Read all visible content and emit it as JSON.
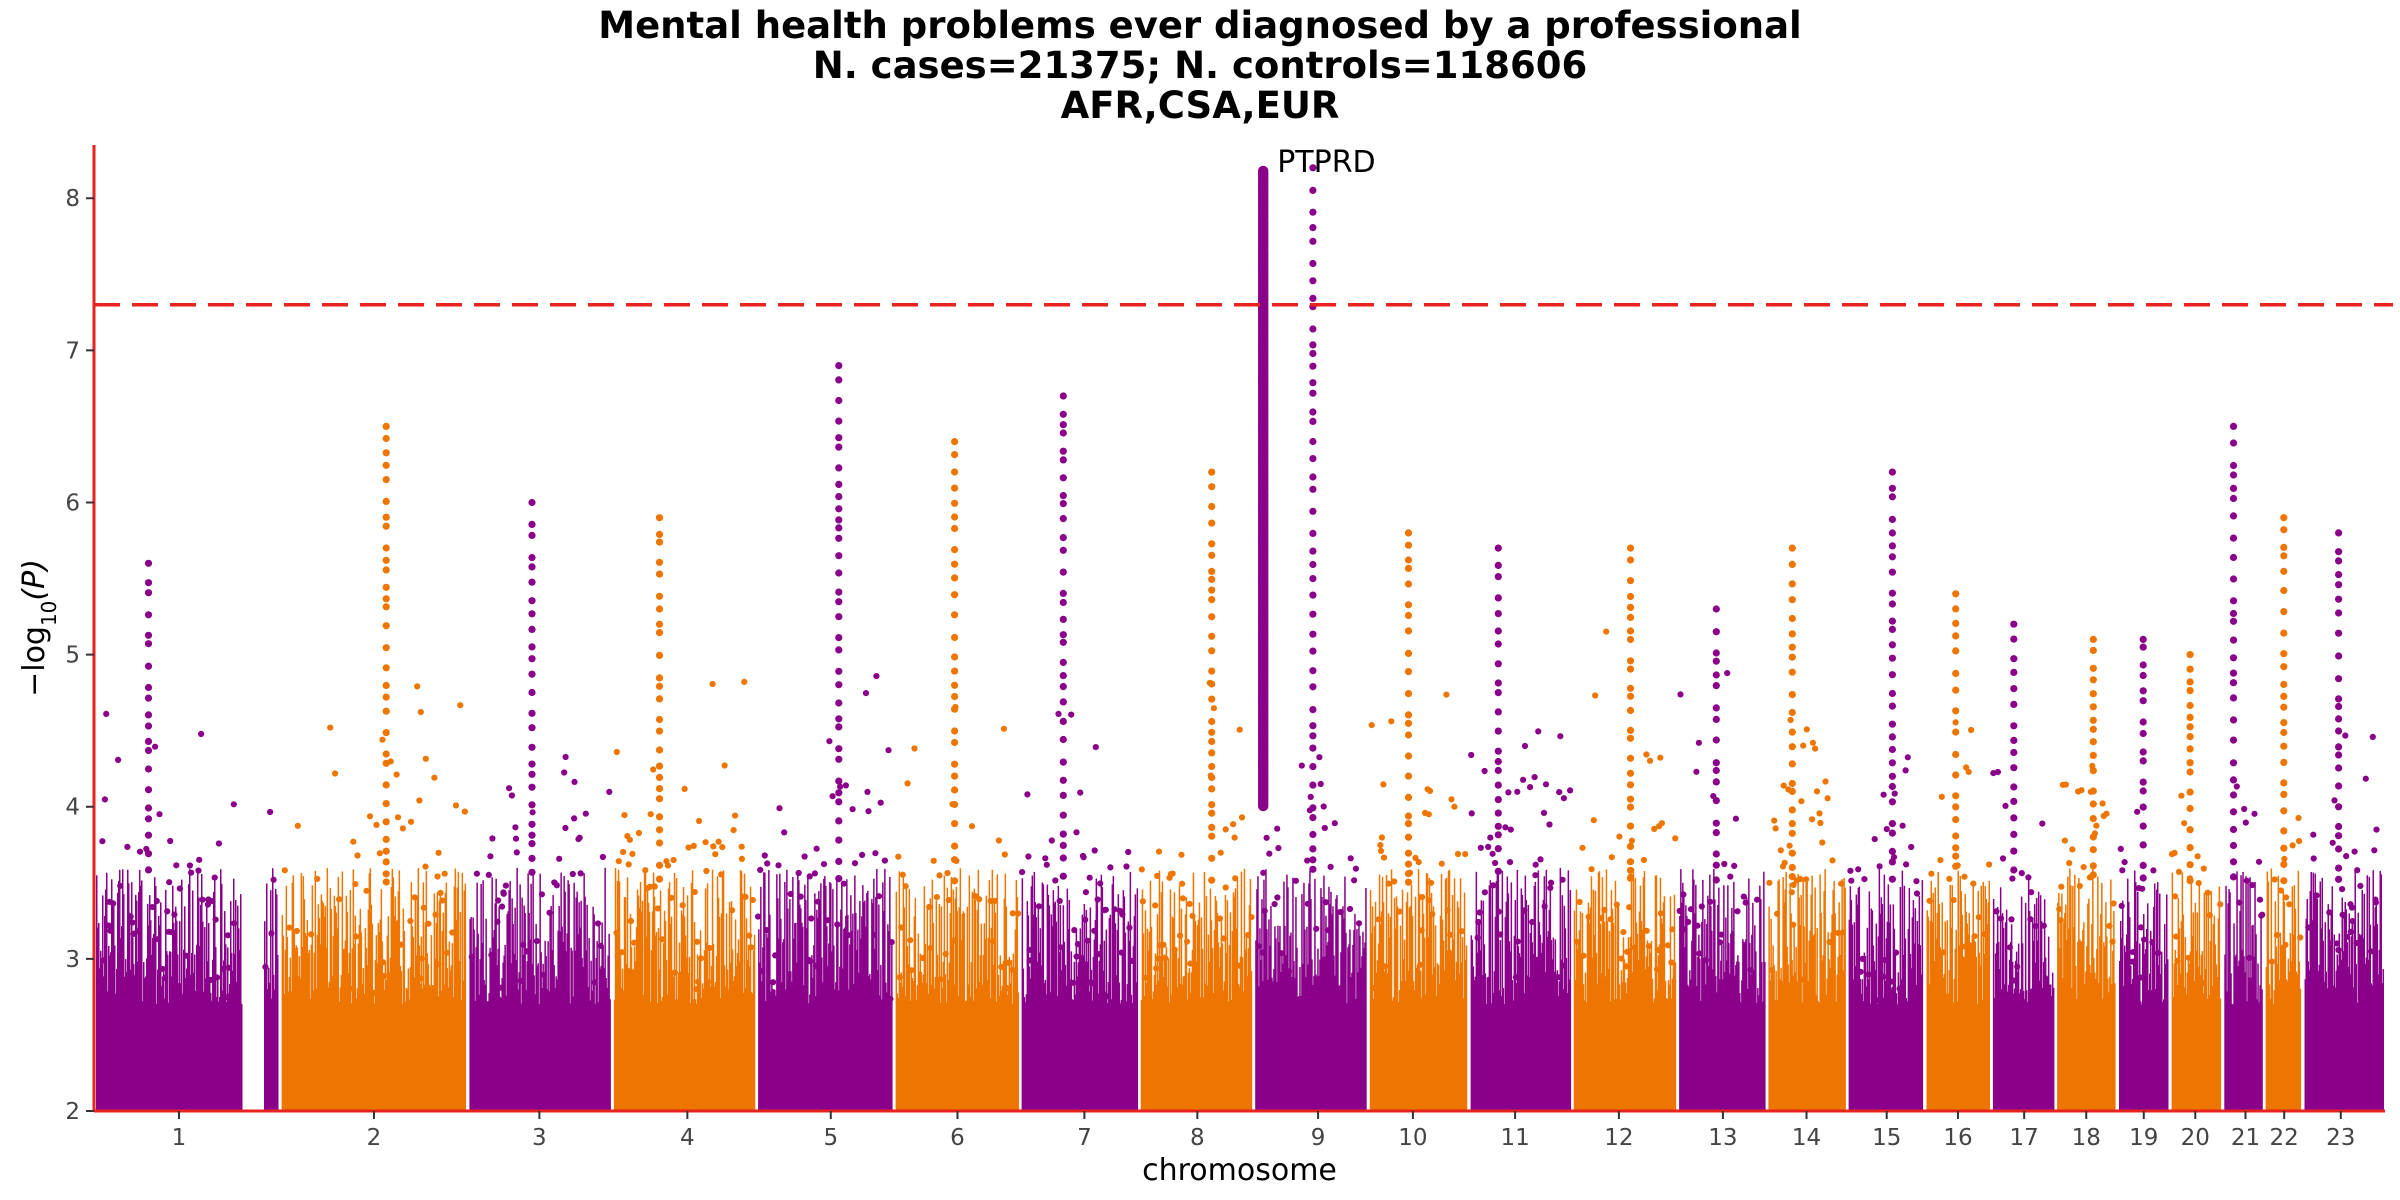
{
  "chart_data": {
    "type": "scatter",
    "subtype": "manhattan",
    "title": "Mental health problems ever diagnosed by a professional",
    "subtitle_lines": [
      "N. cases=21375; N. controls=118606",
      "AFR,CSA,EUR"
    ],
    "xlabel": "chromosome",
    "ylabel": "−log10(P)",
    "ylim": [
      2,
      8.35
    ],
    "yticks": [
      2,
      3,
      4,
      5,
      6,
      7,
      8
    ],
    "significance_line": 7.3,
    "colors": {
      "odd": "#8B008B",
      "even": "#EE7600",
      "threshold": "#E8231F",
      "axis": "#E8231F"
    },
    "chromosomes": [
      {
        "label": "1",
        "mid": 0.0371,
        "start": 0.0,
        "end": 0.081,
        "color": "odd",
        "max": 5.6
      },
      {
        "label": "2",
        "mid": 0.1222,
        "start": 0.081,
        "end": 0.163,
        "color": "even",
        "max": 6.5
      },
      {
        "label": "3",
        "mid": 0.1944,
        "start": 0.163,
        "end": 0.226,
        "color": "odd",
        "max": 6.0
      },
      {
        "label": "4",
        "mid": 0.259,
        "start": 0.226,
        "end": 0.289,
        "color": "even",
        "max": 5.9
      },
      {
        "label": "5",
        "mid": 0.3216,
        "start": 0.289,
        "end": 0.349,
        "color": "odd",
        "max": 6.9
      },
      {
        "label": "6",
        "mid": 0.3769,
        "start": 0.349,
        "end": 0.404,
        "color": "even",
        "max": 6.4
      },
      {
        "label": "7",
        "mid": 0.4323,
        "start": 0.404,
        "end": 0.456,
        "color": "odd",
        "max": 6.7
      },
      {
        "label": "8",
        "mid": 0.4816,
        "start": 0.456,
        "end": 0.506,
        "color": "even",
        "max": 6.2
      },
      {
        "label": "9",
        "mid": 0.5343,
        "start": 0.506,
        "end": 0.556,
        "color": "odd",
        "max": 8.2
      },
      {
        "label": "10",
        "mid": 0.5757,
        "start": 0.556,
        "end": 0.6,
        "color": "even",
        "max": 5.8
      },
      {
        "label": "11",
        "mid": 0.6203,
        "start": 0.6,
        "end": 0.645,
        "color": "odd",
        "max": 5.7
      },
      {
        "label": "12",
        "mid": 0.6656,
        "start": 0.645,
        "end": 0.691,
        "color": "even",
        "max": 5.7
      },
      {
        "label": "13",
        "mid": 0.711,
        "start": 0.691,
        "end": 0.73,
        "color": "odd",
        "max": 5.3
      },
      {
        "label": "14",
        "mid": 0.7475,
        "start": 0.73,
        "end": 0.765,
        "color": "even",
        "max": 5.7
      },
      {
        "label": "15",
        "mid": 0.7825,
        "start": 0.765,
        "end": 0.799,
        "color": "odd",
        "max": 6.2
      },
      {
        "label": "16",
        "mid": 0.8136,
        "start": 0.799,
        "end": 0.828,
        "color": "even",
        "max": 5.4
      },
      {
        "label": "17",
        "mid": 0.8425,
        "start": 0.828,
        "end": 0.856,
        "color": "odd",
        "max": 5.2
      },
      {
        "label": "18",
        "mid": 0.8696,
        "start": 0.856,
        "end": 0.883,
        "color": "even",
        "max": 5.1
      },
      {
        "label": "19",
        "mid": 0.8947,
        "start": 0.883,
        "end": 0.906,
        "color": "odd",
        "max": 5.1
      },
      {
        "label": "20",
        "mid": 0.9172,
        "start": 0.906,
        "end": 0.929,
        "color": "even",
        "max": 5.0
      },
      {
        "label": "21",
        "mid": 0.9391,
        "start": 0.929,
        "end": 0.947,
        "color": "odd",
        "max": 6.5
      },
      {
        "label": "22",
        "mid": 0.956,
        "start": 0.947,
        "end": 0.964,
        "color": "even",
        "max": 5.9
      },
      {
        "label": "23",
        "mid": 0.9807,
        "start": 0.964,
        "end": 1.0,
        "color": "odd",
        "max": 5.8
      }
    ],
    "annotations": [
      {
        "label": "PTPRD",
        "chromosome": "9",
        "y": 8.18
      }
    ]
  }
}
